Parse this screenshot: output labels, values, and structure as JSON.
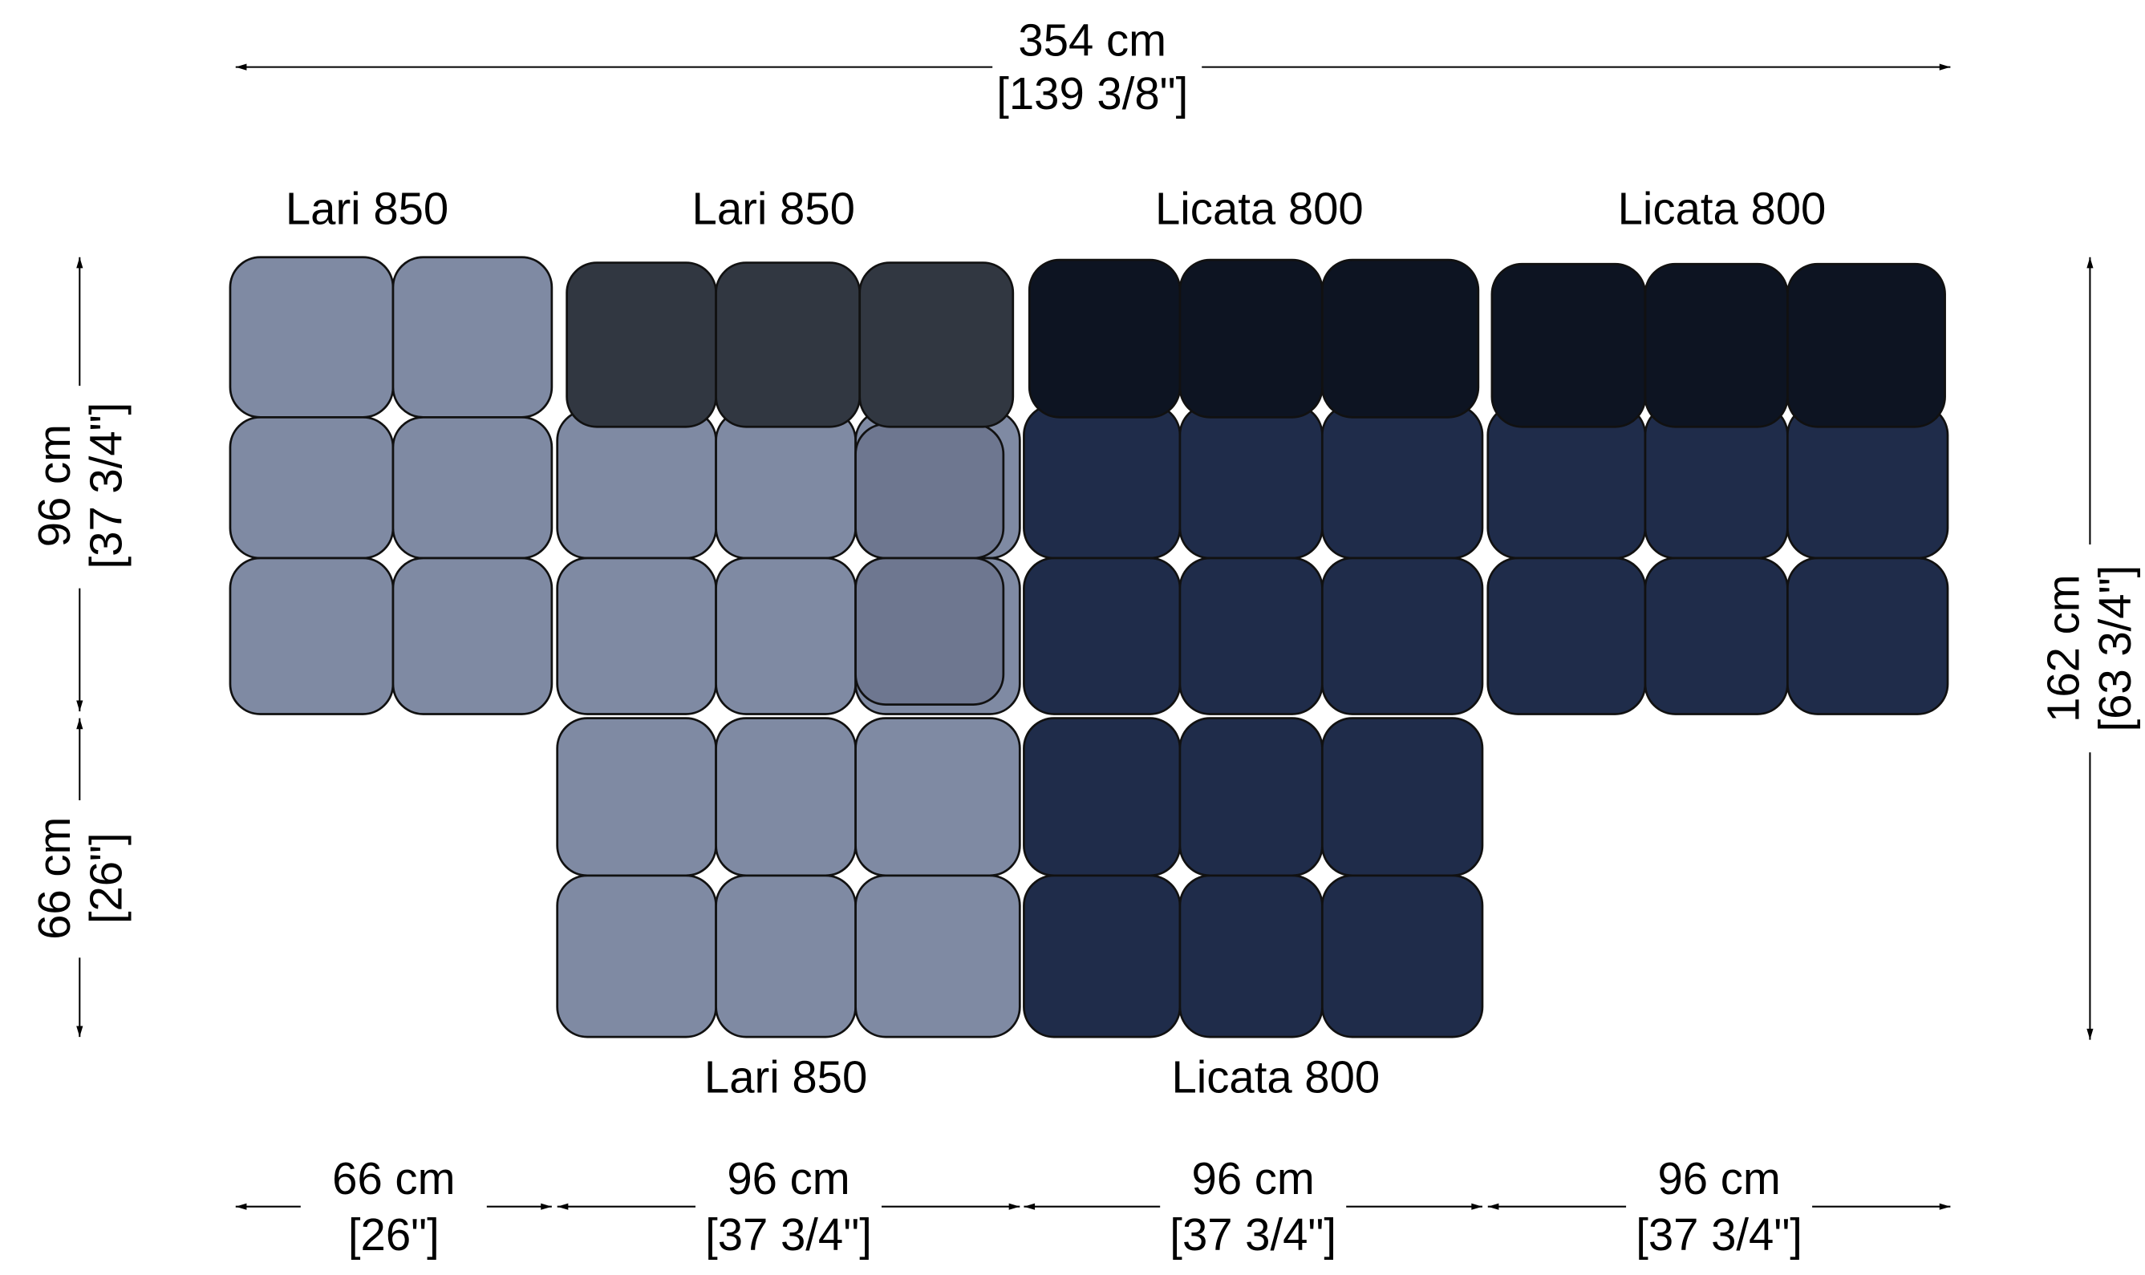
{
  "dims": {
    "total": {
      "metric": "354 cm",
      "imperial": "[139 3/8\"]"
    },
    "left": [
      {
        "metric": "96 cm",
        "imperial": "[37 3/4\"]"
      },
      {
        "metric": "66 cm",
        "imperial": "[26\"]"
      }
    ],
    "right": {
      "metric": "162 cm",
      "imperial": "[63 3/4\"]"
    },
    "bottom": [
      {
        "metric": "66 cm",
        "imperial": "[26\"]"
      },
      {
        "metric": "96 cm",
        "imperial": "[37 3/4\"]"
      },
      {
        "metric": "96 cm",
        "imperial": "[37 3/4\"]"
      },
      {
        "metric": "96 cm",
        "imperial": "[37 3/4\"]"
      }
    ]
  },
  "modules": {
    "top": [
      "Lari 850",
      "Lari 850",
      "Licata 800",
      "Licata 800"
    ],
    "bottom": [
      "Lari 850",
      "Licata 800"
    ]
  }
}
